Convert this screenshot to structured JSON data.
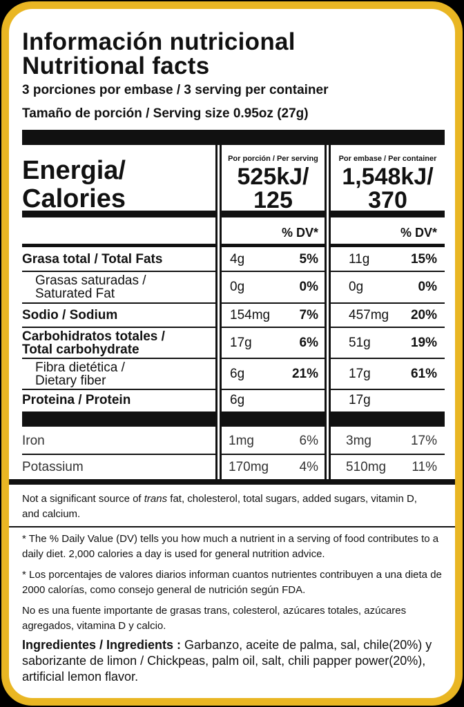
{
  "title": {
    "es": "Información nutricional",
    "en": "Nutritional facts"
  },
  "servings_per_container": "3 porciones por embase  / 3 serving per container",
  "serving_size": "Tamaño de porción / Serving size 0.95oz (27g)",
  "columns": {
    "per_serving_header": "Por porción / Per serving",
    "per_container_header": "Por embase / Per container",
    "dv_header": "% DV*"
  },
  "energy": {
    "label_line1": "Energia/",
    "label_line2": "Calories",
    "per_serving_kj": "525kJ/",
    "per_serving_cal": "125",
    "per_container_kj": "1,548kJ/",
    "per_container_cal": "370"
  },
  "nutrients": [
    {
      "label1": "Grasa total / Total Fats",
      "label2": "",
      "bold": true,
      "indent": false,
      "s_amt": "4g",
      "s_dv": "5%",
      "c_amt": "11g",
      "c_dv": "15%"
    },
    {
      "label1": "Grasas saturadas /",
      "label2": "Saturated Fat",
      "bold": false,
      "indent": true,
      "s_amt": "0g",
      "s_dv": "0%",
      "c_amt": "0g",
      "c_dv": "0%"
    },
    {
      "label1": "Sodio / Sodium",
      "label2": "",
      "bold": true,
      "indent": false,
      "s_amt": "154mg",
      "s_dv": "7%",
      "c_amt": "457mg",
      "c_dv": "20%"
    },
    {
      "label1": "Carbohidratos totales /",
      "label2": "Total carbohydrate",
      "bold": true,
      "indent": false,
      "s_amt": "17g",
      "s_dv": "6%",
      "c_amt": "51g",
      "c_dv": "19%"
    },
    {
      "label1": "Fibra dietética /",
      "label2": "Dietary fiber",
      "bold": false,
      "indent": true,
      "s_amt": "6g",
      "s_dv": "21%",
      "c_amt": "17g",
      "c_dv": "61%"
    },
    {
      "label1": "Proteina / Protein",
      "label2": "",
      "bold": true,
      "indent": false,
      "s_amt": "6g",
      "s_dv": "",
      "c_amt": "17g",
      "c_dv": ""
    }
  ],
  "minerals": [
    {
      "label": "Iron",
      "s_amt": "1mg",
      "s_dv": "6%",
      "c_amt": "3mg",
      "c_dv": "17%"
    },
    {
      "label": "Potassium",
      "s_amt": "170mg",
      "s_dv": "4%",
      "c_amt": "510mg",
      "c_dv": "11%"
    }
  ],
  "footnotes": {
    "not_significant_1": "Not a significant source of ",
    "not_significant_trans": "trans",
    "not_significant_2": " fat, cholesterol, total sugars, added sugars, vitamin D, and calcium.",
    "dv_en": "* The % Daily Value (DV) tells you how much a nutrient in a serving of food contributes to a daily diet. 2,000 calories a day is used for general nutrition advice.",
    "dv_es": "* Los porcentajes de valores diarios informan cuantos nutrientes contribuyen a una dieta de 2000 calorías, como consejo general de nutrición según FDA.",
    "not_significant_es": "No es una fuente importante de grasas trans, colesterol, azúcares totales, azúcares agregados, vitamina D y calcio."
  },
  "ingredients": {
    "label": "Ingredientes / Ingredients :",
    "text": " Garbanzo, aceite de palma, sal, chile(20%) y saborizante de limon / Chickpeas, palm oil, salt, chili papper power(20%), artificial lemon flavor."
  },
  "colors": {
    "frame": "#000000",
    "gold": "#e9b623",
    "label_bg": "#ffffff",
    "ink": "#111111"
  }
}
